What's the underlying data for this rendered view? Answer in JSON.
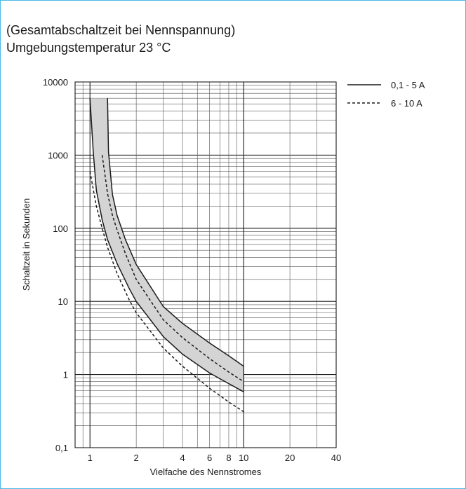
{
  "title_lines": [
    "(Gesamtabschaltzeit bei Nennspannung)",
    "Umgebungstemperatur 23 °C"
  ],
  "chart_data": {
    "type": "line",
    "xscale": "log",
    "yscale": "log",
    "xlim": [
      0.8,
      40
    ],
    "ylim": [
      0.1,
      10000
    ],
    "grid": true,
    "xlabel": "Vielfache des Nennstromes",
    "ylabel": "Schaltzeit in Sekunden",
    "xticks": [
      1,
      2,
      4,
      6,
      8,
      10,
      20,
      40
    ],
    "yticks": [
      0.1,
      1,
      10,
      100,
      1000,
      10000
    ],
    "xtick_labels": [
      "1",
      "2",
      "4",
      "6",
      "8",
      "10",
      "20",
      "40"
    ],
    "ytick_labels": [
      "0,1",
      "1",
      "10",
      "100",
      "1000",
      "10000"
    ],
    "legend_position": "top-right",
    "series": [
      {
        "name": "0,1 - 5 A",
        "style": "solid",
        "color": "#1a1a1a",
        "band_fill": "#d4d4d4",
        "lower": {
          "x": [
            1.0,
            1.05,
            1.1,
            1.2,
            1.3,
            1.5,
            1.8,
            2.0,
            3.0,
            4.0,
            6.0,
            8.0,
            10.0
          ],
          "y": [
            6000,
            1100,
            330,
            130,
            70,
            33,
            15,
            10,
            3.3,
            1.9,
            1.05,
            0.75,
            0.58
          ]
        },
        "upper": {
          "x": [
            1.3,
            1.32,
            1.4,
            1.5,
            1.7,
            2.0,
            3.0,
            4.0,
            6.0,
            8.0,
            10.0
          ],
          "y": [
            6000,
            1100,
            290,
            150,
            70,
            32,
            8.5,
            5.0,
            2.7,
            1.8,
            1.3
          ]
        }
      },
      {
        "name": "6 - 10 A",
        "style": "dashed",
        "color": "#1a1a1a",
        "lower": {
          "x": [
            1.0,
            1.1,
            1.2,
            1.3,
            1.5,
            1.8,
            2.0,
            3.0,
            4.0,
            6.0,
            8.0,
            10.0
          ],
          "y": [
            600,
            200,
            100,
            55,
            24,
            10.5,
            7,
            2.3,
            1.3,
            0.65,
            0.42,
            0.31
          ]
        },
        "upper": {
          "x": [
            1.2,
            1.3,
            1.4,
            1.5,
            1.7,
            2.0,
            3.0,
            4.0,
            6.0,
            8.0,
            10.0
          ],
          "y": [
            1000,
            300,
            150,
            95,
            45,
            20,
            5.6,
            3.2,
            1.65,
            1.08,
            0.8
          ]
        }
      }
    ]
  }
}
